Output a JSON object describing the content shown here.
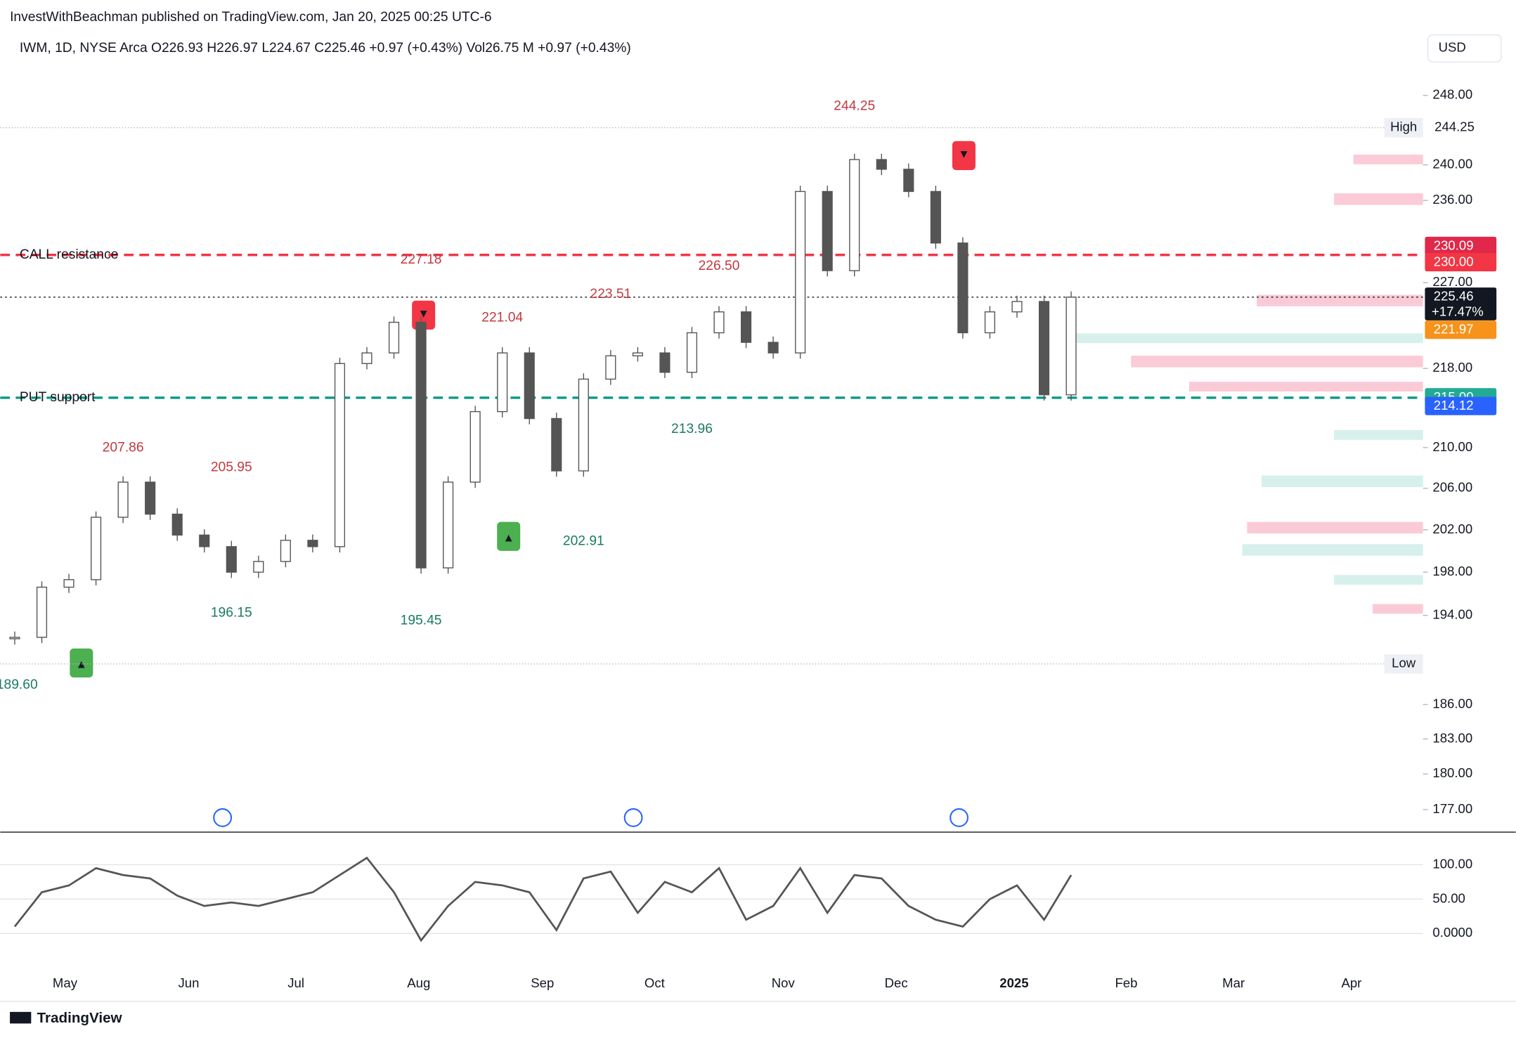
{
  "header": {
    "publisher": "InvestWithBeachman published on TradingView.com, Jan 20, 2025 00:25 UTC-6",
    "legend": "IWM, 1D, NYSE Arca  O226.93  H226.97  L224.67  C225.46  +0.97 (+0.43%)  Vol26.75 M  +0.97 (+0.43%)",
    "currency": "USD",
    "footer": "TradingView"
  },
  "chart_data": {
    "type": "candlestick",
    "log_scale": true,
    "closes": [
      192,
      196.6,
      197.3,
      203.2,
      206.6,
      203.5,
      201.5,
      200.4,
      198,
      199,
      201,
      200.4,
      218.5,
      219.6,
      222.8,
      198.4,
      206.6,
      213.6,
      219.6,
      212.9,
      207.7,
      216.9,
      219.3,
      219.6,
      217.6,
      221.7,
      223.9,
      220.7,
      219.6,
      237,
      228.3,
      240.6,
      239.5,
      237,
      231.3,
      221.7,
      223.9,
      225,
      215.3,
      225.46
    ],
    "ylim": [
      175.2,
      250.7
    ],
    "yticks": [
      {
        "value": 248,
        "label": "248.00"
      },
      {
        "value": 240,
        "label": "240.00"
      },
      {
        "value": 236,
        "label": "236.00"
      },
      {
        "value": 227,
        "label": "227.00"
      },
      {
        "value": 218,
        "label": "218.00"
      },
      {
        "value": 210,
        "label": "210.00"
      },
      {
        "value": 206,
        "label": "206.00"
      },
      {
        "value": 202,
        "label": "202.00"
      },
      {
        "value": 198,
        "label": "198.00"
      },
      {
        "value": 194,
        "label": "194.00"
      },
      {
        "value": 186,
        "label": "186.00"
      },
      {
        "value": 183,
        "label": "183.00"
      },
      {
        "value": 180,
        "label": "180.00"
      },
      {
        "value": 177,
        "label": "177.00"
      }
    ],
    "x_labels": [
      "May",
      "Jun",
      "Jul",
      "Aug",
      "Sep",
      "Oct",
      "Nov",
      "Dec",
      "2025",
      "Feb",
      "Mar",
      "Apr"
    ],
    "levels": [
      {
        "name": "CALL resistance",
        "value": 230,
        "color": "#f23645"
      },
      {
        "name": "PUT support",
        "value": 215,
        "color": "#089981"
      }
    ],
    "high": {
      "label": "High",
      "value": 244.25,
      "text": "244.25"
    },
    "low": {
      "label": "Low",
      "value": 189.6,
      "text": "189.60"
    },
    "price_tags": [
      {
        "value": 230.09,
        "label": "230.09",
        "color": "#e0294a"
      },
      {
        "value": 230,
        "label": "230.00",
        "color": "#f23645"
      },
      {
        "value": 225.46,
        "label": "225.46",
        "sub": "+17.47%",
        "color": "#131722"
      },
      {
        "value": 221.97,
        "label": "221.97",
        "color": "#f7931a"
      },
      {
        "value": 215,
        "label": "215.00",
        "color": "#22ab94"
      },
      {
        "value": 214.12,
        "label": "214.12",
        "color": "#2962ff"
      }
    ],
    "annotations": [
      {
        "text": "227.18",
        "value": 227.18,
        "i": 15,
        "color": "#c2393f"
      },
      {
        "text": "221.04",
        "value": 221.04,
        "i": 18,
        "color": "#c2393f"
      },
      {
        "text": "223.51",
        "value": 223.51,
        "i": 22,
        "color": "#c2393f"
      },
      {
        "text": "226.50",
        "value": 226.5,
        "i": 26,
        "color": "#c2393f"
      },
      {
        "text": "244.25",
        "value": 244.25,
        "i": 31,
        "color": "#c2393f"
      },
      {
        "text": "207.86",
        "value": 207.86,
        "i": 4,
        "color": "#c2393f"
      },
      {
        "text": "205.95",
        "value": 205.95,
        "i": 8,
        "color": "#c2393f"
      },
      {
        "text": "196.15",
        "value": 196.15,
        "i": 8,
        "color": "#1b7a62"
      },
      {
        "text": "195.45",
        "value": 195.45,
        "i": 15,
        "color": "#1b7a62"
      },
      {
        "text": "213.96",
        "value": 213.96,
        "i": 25,
        "color": "#1b7a62"
      },
      {
        "text": "202.91",
        "value": 202.91,
        "i": 21,
        "color": "#1b7a62"
      },
      {
        "text": "189.60",
        "value": 189.6,
        "i": 0,
        "color": "#1b7a62"
      }
    ],
    "oscillator": {
      "values": [
        10,
        60,
        70,
        95,
        85,
        80,
        55,
        40,
        45,
        40,
        50,
        60,
        85,
        110,
        60,
        -10,
        40,
        75,
        70,
        60,
        5,
        80,
        90,
        30,
        75,
        60,
        95,
        20,
        40,
        95,
        30,
        85,
        80,
        40,
        20,
        10,
        50,
        70,
        20,
        85
      ],
      "ylim": [
        -48,
        146
      ],
      "yticks": [
        {
          "value": 100,
          "label": "100.00"
        },
        {
          "value": 50,
          "label": "50.00"
        },
        {
          "value": 0,
          "label": "0.0000"
        }
      ]
    }
  }
}
